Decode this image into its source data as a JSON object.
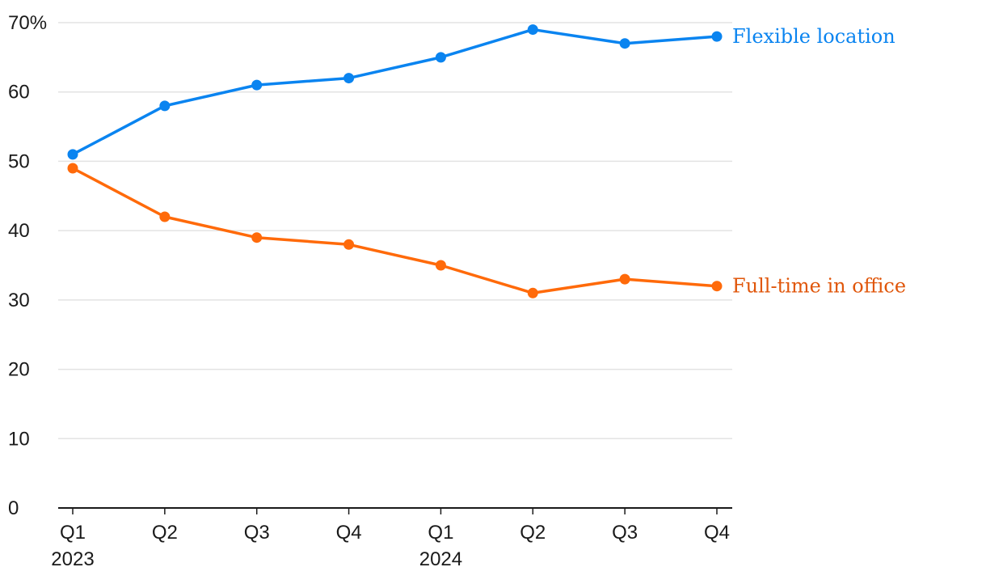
{
  "chart_data": {
    "type": "line",
    "title": "",
    "xlabel": "",
    "ylabel": "",
    "categories": [
      "Q1",
      "Q2",
      "Q3",
      "Q4",
      "Q1",
      "Q2",
      "Q3",
      "Q4"
    ],
    "category_years": [
      "2023",
      "",
      "",
      "",
      "2024",
      "",
      "",
      ""
    ],
    "y_ticks": [
      "0",
      "10",
      "20",
      "30",
      "40",
      "50",
      "60",
      "70%"
    ],
    "ylim": [
      0,
      70
    ],
    "grid": true,
    "legend": "direct labels at line ends",
    "series": [
      {
        "name": "Flexible location",
        "color": "#0a84f0",
        "label_color": "#0a84f0",
        "values": [
          51,
          58,
          61,
          62,
          65,
          69,
          67,
          68
        ]
      },
      {
        "name": "Full-time in office",
        "color": "#ff6a0a",
        "label_color": "#e0560a",
        "values": [
          49,
          42,
          39,
          38,
          35,
          31,
          33,
          32
        ]
      }
    ]
  }
}
